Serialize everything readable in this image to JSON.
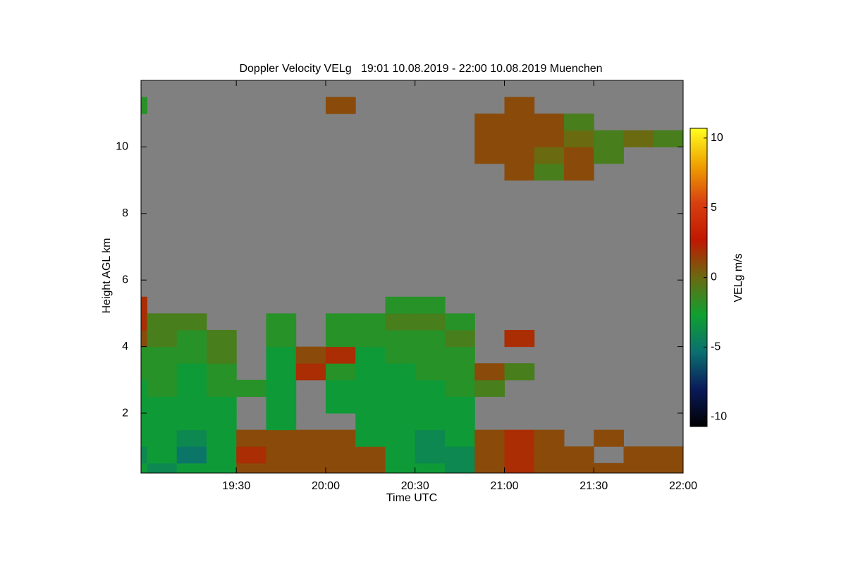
{
  "chart_data": {
    "type": "heatmap",
    "title": "Doppler Velocity VELg   19:01 10.08.2019 - 22:00 10.08.2019 Muenchen",
    "xlabel": "Time UTC",
    "ylabel": "Height AGL km",
    "zlabel": "VELg m/s",
    "xlim": [
      1138,
      1320
    ],
    "xticks": [
      {
        "value": 1170,
        "label": "19:30"
      },
      {
        "value": 1200,
        "label": "20:00"
      },
      {
        "value": 1230,
        "label": "20:30"
      },
      {
        "value": 1260,
        "label": "21:00"
      },
      {
        "value": 1290,
        "label": "21:30"
      },
      {
        "value": 1320,
        "label": "22:00"
      }
    ],
    "ylim": [
      0.2,
      12.0
    ],
    "yticks": [
      2,
      4,
      6,
      8,
      10
    ],
    "zlim": [
      -10.7,
      10.7
    ],
    "zticks": [
      -10,
      -5,
      0,
      5,
      10
    ],
    "colormap": [
      "#000000",
      "#0a1a5a",
      "#0a7070",
      "#10a030",
      "#6a6a10",
      "#c01800",
      "#d84010",
      "#f0a000",
      "#ffff20"
    ],
    "x_edges": [
      1138,
      1140,
      1150,
      1160,
      1170,
      1180,
      1190,
      1200,
      1210,
      1220,
      1230,
      1240,
      1250,
      1260,
      1270,
      1280,
      1290,
      1300,
      1310,
      1320
    ],
    "y_edges": [
      0.2,
      0.5,
      1.0,
      1.5,
      2.0,
      2.5,
      3.0,
      3.5,
      4.0,
      4.5,
      5.0,
      5.5,
      6.0,
      6.5,
      7.0,
      7.5,
      8.0,
      8.5,
      9.0,
      9.5,
      10.0,
      10.5,
      11.0,
      11.5,
      12.0
    ],
    "z": [
      [
        -3,
        -4,
        -3,
        -3,
        1,
        1,
        1,
        1,
        1,
        -3,
        -3,
        -4,
        1,
        2,
        1,
        1,
        1,
        1,
        1
      ],
      [
        -4,
        -3,
        -5,
        -3,
        2,
        1,
        1,
        1,
        1,
        -3,
        -4,
        -4,
        1,
        2,
        1,
        1,
        null,
        1,
        1
      ],
      [
        -3,
        -3,
        -4,
        -3,
        1,
        1,
        1,
        1,
        -3,
        -3,
        -4,
        -3,
        1,
        2,
        1,
        null,
        1,
        null,
        null
      ],
      [
        -3,
        -3,
        -3,
        -3,
        null,
        -3,
        null,
        null,
        -3,
        -3,
        -3,
        -3,
        null,
        null,
        null,
        null,
        null,
        null,
        null
      ],
      [
        -3,
        -3,
        -3,
        -3,
        null,
        -3,
        null,
        -3,
        -3,
        -3,
        -3,
        -3,
        null,
        null,
        null,
        null,
        null,
        null,
        null
      ],
      [
        -3,
        -2,
        -3,
        -2,
        -2,
        -3,
        null,
        -3,
        -3,
        -3,
        -3,
        -2,
        -1,
        null,
        null,
        null,
        null,
        null,
        null
      ],
      [
        -2,
        -2,
        -3,
        -2,
        null,
        -3,
        2,
        -2,
        -3,
        -3,
        -2,
        -2,
        1,
        -1,
        null,
        null,
        null,
        null,
        null
      ],
      [
        -2,
        -2,
        -2,
        -1,
        null,
        -3,
        1,
        2,
        -3,
        -2,
        -2,
        -2,
        null,
        null,
        null,
        null,
        null,
        null,
        null
      ],
      [
        1,
        -1,
        -2,
        -1,
        null,
        -2,
        null,
        -2,
        -2,
        -2,
        -2,
        -1,
        null,
        2,
        null,
        null,
        null,
        null,
        null
      ],
      [
        2,
        -1,
        -1,
        null,
        null,
        -2,
        null,
        -2,
        -2,
        -1,
        -1,
        -2,
        null,
        null,
        null,
        null,
        null,
        null,
        null
      ],
      [
        2,
        null,
        null,
        null,
        null,
        null,
        null,
        null,
        null,
        -2,
        -2,
        null,
        null,
        null,
        null,
        null,
        null,
        null,
        null
      ],
      [
        null,
        null,
        null,
        null,
        null,
        null,
        null,
        null,
        null,
        null,
        null,
        null,
        null,
        null,
        null,
        null,
        null,
        null,
        null
      ],
      [
        null,
        null,
        null,
        null,
        null,
        null,
        null,
        null,
        null,
        null,
        null,
        null,
        null,
        null,
        null,
        null,
        null,
        null,
        null
      ],
      [
        null,
        null,
        null,
        null,
        null,
        null,
        null,
        null,
        null,
        null,
        null,
        null,
        null,
        null,
        null,
        null,
        null,
        null,
        null
      ],
      [
        null,
        null,
        null,
        null,
        null,
        null,
        null,
        null,
        null,
        null,
        null,
        null,
        null,
        null,
        null,
        null,
        null,
        null,
        null
      ],
      [
        null,
        null,
        null,
        null,
        null,
        null,
        null,
        null,
        null,
        null,
        null,
        null,
        null,
        null,
        null,
        null,
        null,
        null,
        null
      ],
      [
        null,
        null,
        null,
        null,
        null,
        null,
        null,
        null,
        null,
        null,
        null,
        null,
        null,
        null,
        null,
        null,
        null,
        null,
        null
      ],
      [
        null,
        null,
        null,
        null,
        null,
        null,
        null,
        null,
        null,
        null,
        null,
        null,
        null,
        null,
        null,
        null,
        null,
        null,
        null
      ],
      [
        null,
        null,
        null,
        null,
        null,
        null,
        null,
        null,
        null,
        null,
        null,
        null,
        null,
        1,
        -1,
        1,
        null,
        null,
        null
      ],
      [
        null,
        null,
        null,
        null,
        null,
        null,
        null,
        null,
        null,
        null,
        null,
        null,
        1,
        1,
        0,
        1,
        -1,
        null,
        null
      ],
      [
        null,
        null,
        null,
        null,
        null,
        null,
        null,
        null,
        null,
        null,
        null,
        null,
        1,
        1,
        1,
        0,
        -1,
        0,
        -1
      ],
      [
        null,
        null,
        null,
        null,
        null,
        null,
        null,
        null,
        null,
        null,
        null,
        null,
        1,
        1,
        1,
        -1,
        null,
        null,
        null
      ],
      [
        -2,
        null,
        null,
        null,
        null,
        null,
        null,
        1,
        null,
        null,
        null,
        null,
        null,
        1,
        null,
        null,
        null,
        null,
        null
      ],
      [
        null,
        null,
        null,
        null,
        null,
        null,
        null,
        null,
        null,
        null,
        null,
        null,
        null,
        null,
        null,
        null,
        null,
        null,
        null
      ]
    ]
  }
}
